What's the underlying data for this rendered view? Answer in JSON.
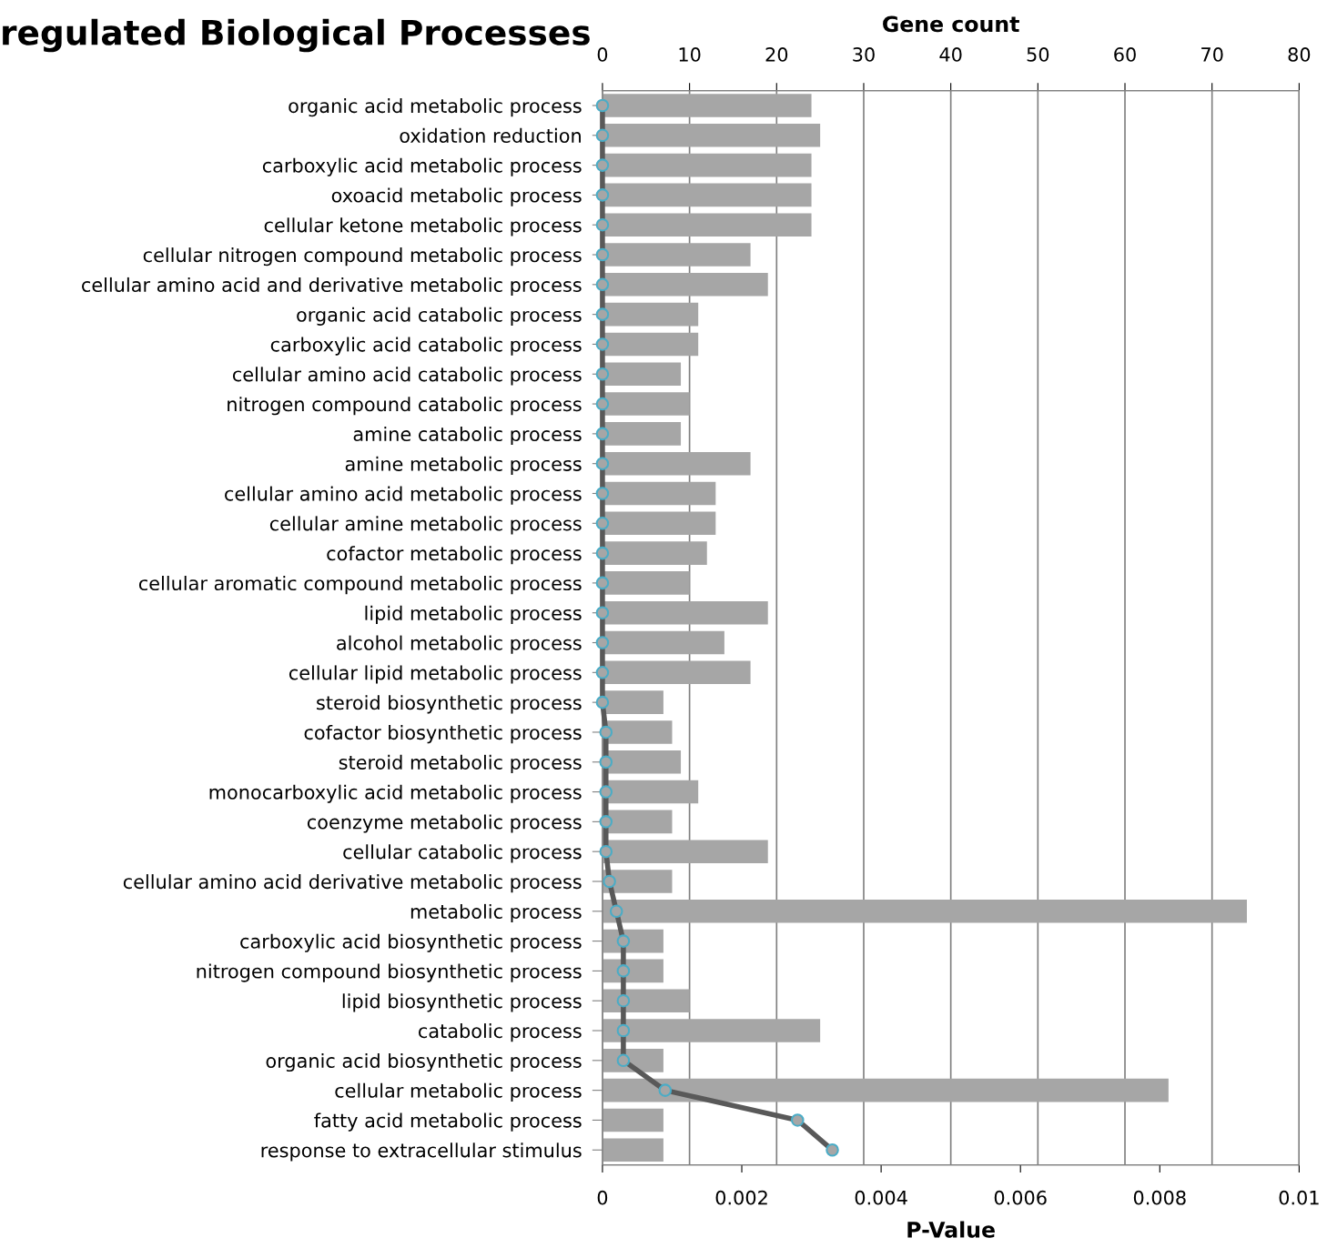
{
  "chart_data": {
    "type": "bar",
    "orientation": "horizontal",
    "title": "regulated Biological Processes",
    "xlabel": "P-Value",
    "x2label": "Gene count",
    "categories": [
      "organic acid metabolic process",
      "oxidation reduction",
      "carboxylic acid metabolic process",
      "oxoacid metabolic process",
      "cellular ketone metabolic process",
      "cellular nitrogen compound metabolic process",
      "cellular amino acid and derivative metabolic process",
      "organic acid catabolic process",
      "carboxylic acid catabolic process",
      "cellular amino acid catabolic process",
      "nitrogen compound catabolic process",
      "amine catabolic process",
      "amine metabolic process",
      "cellular amino acid metabolic process",
      "cellular amine metabolic process",
      "cofactor metabolic process",
      "cellular aromatic compound metabolic process",
      "lipid metabolic process",
      "alcohol metabolic process",
      "cellular lipid metabolic process",
      "steroid biosynthetic process",
      "cofactor biosynthetic process",
      "steroid metabolic process",
      "monocarboxylic acid metabolic process",
      "coenzyme metabolic process",
      "cellular catabolic process",
      "cellular amino acid derivative metabolic process",
      "metabolic process",
      "carboxylic acid biosynthetic process",
      "nitrogen compound biosynthetic process",
      "lipid biosynthetic process",
      "catabolic process",
      "organic acid biosynthetic process",
      "cellular metabolic process",
      "fatty acid metabolic process",
      "response to extracellular stimulus"
    ],
    "series": [
      {
        "axis": "x2",
        "color": "#a6a6a6",
        "values": [
          24,
          25,
          24,
          24,
          24,
          17,
          19,
          11,
          11,
          9,
          10,
          9,
          17,
          13,
          13,
          12,
          10,
          19,
          14,
          17,
          7,
          8,
          9,
          11,
          8,
          19,
          8,
          74,
          7,
          7,
          10,
          25,
          7,
          65,
          7,
          7
        ]
      },
      {
        "type": "line",
        "color": "#595959",
        "marker": "circle",
        "values": [
          0,
          0,
          0,
          0,
          0,
          0,
          0,
          0,
          0,
          0,
          0,
          0,
          0,
          0,
          0,
          0,
          0,
          0,
          0,
          0,
          0,
          5e-05,
          5e-05,
          5e-05,
          5e-05,
          5e-05,
          0.0001,
          0.0002,
          0.0003,
          0.0003,
          0.0003,
          0.0003,
          0.0003,
          0.0009,
          0.0028,
          0.0033
        ]
      }
    ],
    "xlim": [
      0,
      0.01
    ],
    "xticks": [
      0,
      0.002,
      0.004,
      0.006,
      0.008,
      0.01
    ],
    "x2lim": [
      0,
      80
    ],
    "x2ticks": [
      0,
      10,
      20,
      30,
      40,
      50,
      60,
      70,
      80
    ],
    "grid": "x"
  }
}
